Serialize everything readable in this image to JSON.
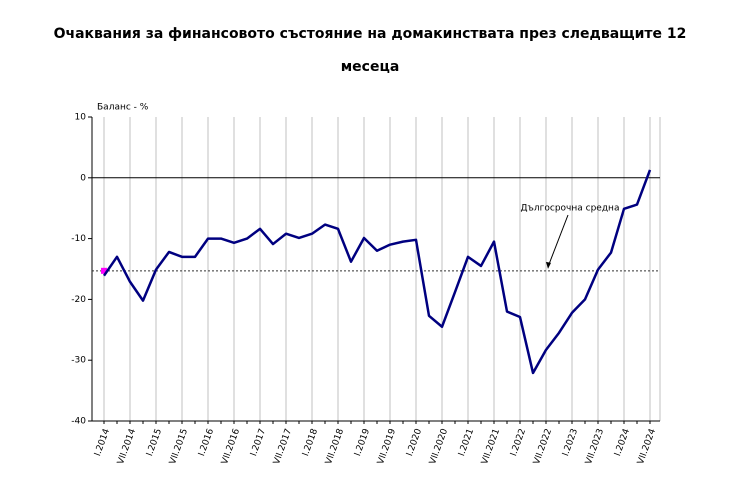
{
  "chart_data": {
    "type": "line",
    "title": "Очаквания за финансовото състояние на домакинствата през следващите 12 месеца",
    "y_label": "Баланс - %",
    "categories": [
      "I.2014",
      null,
      "VII.2014",
      null,
      "I.2015",
      null,
      "VII.2015",
      null,
      "I.2016",
      null,
      "VII.2016",
      null,
      "I.2017",
      null,
      "VII.2017",
      null,
      "I.2018",
      null,
      "VII.2018",
      null,
      "I.2019",
      null,
      "VII.2019",
      null,
      "I.2020",
      null,
      "VII.2020",
      null,
      "I.2021",
      null,
      "VII.2021",
      null,
      "I.2022",
      null,
      "VII.2022",
      null,
      "I.2023",
      null,
      "VII.2023",
      null,
      "I.2024",
      null,
      "VII.2024"
    ],
    "values": [
      -16.1,
      -13,
      -17.1,
      -20.2,
      -15.1,
      -12.2,
      -13,
      -13,
      -10,
      -10,
      -10.7,
      -10,
      -8.4,
      -10.9,
      -9.2,
      -9.9,
      -9.2,
      -7.7,
      -8.4,
      -13.8,
      -9.9,
      -12,
      -11,
      -10.5,
      -10.2,
      -22.7,
      -24.5,
      -18.8,
      -13,
      -14.5,
      -10.5,
      -22,
      -22.9,
      -32.1,
      -28.3,
      -25.5,
      -22.2,
      -20,
      -15.1,
      -12.3,
      -5.1,
      -4.4,
      1.3
    ],
    "color": "#000080",
    "average": {
      "value": -15.3,
      "label": "Дългосрочна средна",
      "color": "#ff00ff"
    },
    "ylim": [
      -40,
      10
    ],
    "yticks": [
      -40,
      -30,
      -20,
      -10,
      0,
      10
    ]
  }
}
